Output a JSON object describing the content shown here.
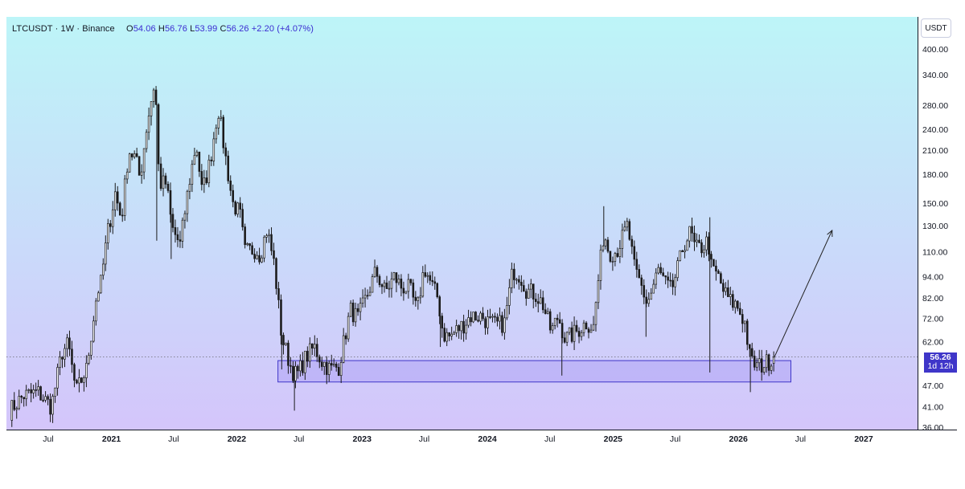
{
  "header": {
    "symbol": "LTCUSDT",
    "interval": "1W",
    "exchange": "Binance",
    "o_label": "O",
    "o_value": "54.06",
    "h_label": "H",
    "h_value": "56.76",
    "l_label": "L",
    "l_value": "53.99",
    "c_label": "C",
    "c_value": "56.26",
    "change": "+2.20 (+4.07%)"
  },
  "currency_button": "USDT",
  "price_tag": {
    "price": "56.26",
    "countdown": "1d 12h"
  },
  "colors": {
    "bg_top": "#bdf5f8",
    "bg_bottom": "#d5c3fb",
    "candle": "#1a1a1a",
    "zone_fill": "#a99cf4",
    "zone_stroke": "#3f36c9",
    "tag_bg": "#3f36c9",
    "ohlc_value": "#3a2bd1",
    "change_value": "#3a2bd1"
  },
  "chart_data": {
    "type": "candlestick",
    "y_scale": "log",
    "ylim": [
      35,
      440
    ],
    "y_ticks": [
      400,
      340,
      280,
      240,
      210,
      180,
      150,
      130,
      110,
      94,
      82,
      72,
      62,
      56.26,
      47,
      41,
      36
    ],
    "y_tick_labels": [
      "400.00",
      "340.00",
      "280.00",
      "240.00",
      "210.00",
      "180.00",
      "150.00",
      "130.00",
      "110.00",
      "94.00",
      "82.00",
      "72.00",
      "62.00",
      "",
      "47.00",
      "41.00",
      "36.00"
    ],
    "x_ticks": [
      {
        "label": "Jul",
        "date": "2020-07-01"
      },
      {
        "label": "2021",
        "date": "2021-01-01"
      },
      {
        "label": "Jul",
        "date": "2021-07-01"
      },
      {
        "label": "2022",
        "date": "2022-01-01"
      },
      {
        "label": "Jul",
        "date": "2022-07-01"
      },
      {
        "label": "2023",
        "date": "2023-01-01"
      },
      {
        "label": "Jul",
        "date": "2023-07-01"
      },
      {
        "label": "2024",
        "date": "2024-01-01"
      },
      {
        "label": "Jul",
        "date": "2024-07-01"
      },
      {
        "label": "2025",
        "date": "2025-01-01"
      },
      {
        "label": "Jul",
        "date": "2025-07-01"
      },
      {
        "label": "2026",
        "date": "2026-01-01"
      },
      {
        "label": "Jul",
        "date": "2026-07-01"
      },
      {
        "label": "2027",
        "date": "2027-01-01"
      }
    ],
    "bold_years": [
      "2021",
      "2022",
      "2023",
      "2024",
      "2025",
      "2026",
      "2027"
    ],
    "support_zone": {
      "x0": "2022-05-01",
      "x1": "2026-06-03",
      "y_low": 48,
      "y_high": 55
    },
    "projection_arrow": {
      "from": [
        "2026-04-15",
        56
      ],
      "to": [
        "2026-10-01",
        126
      ]
    },
    "last_price_line": 56.26,
    "anchors": [
      [
        "2020-03-10",
        40
      ],
      [
        "2020-04-20",
        44
      ],
      [
        "2020-06-01",
        45
      ],
      [
        "2020-07-10",
        41
      ],
      [
        "2020-08-10",
        58
      ],
      [
        "2020-08-28",
        61
      ],
      [
        "2020-09-20",
        45
      ],
      [
        "2020-10-20",
        52
      ],
      [
        "2020-11-20",
        85
      ],
      [
        "2020-12-01",
        90
      ],
      [
        "2020-12-20",
        123
      ],
      [
        "2021-01-12",
        160
      ],
      [
        "2021-01-30",
        135
      ],
      [
        "2021-02-20",
        210
      ],
      [
        "2021-03-12",
        200
      ],
      [
        "2021-03-25",
        175
      ],
      [
        "2021-04-15",
        250
      ],
      [
        "2021-05-08",
        330
      ],
      [
        "2021-05-20",
        170
      ],
      [
        "2021-06-10",
        170
      ],
      [
        "2021-06-26",
        128
      ],
      [
        "2021-07-20",
        115
      ],
      [
        "2021-08-15",
        170
      ],
      [
        "2021-09-05",
        220
      ],
      [
        "2021-09-22",
        160
      ],
      [
        "2021-10-15",
        195
      ],
      [
        "2021-11-08",
        275
      ],
      [
        "2021-11-28",
        205
      ],
      [
        "2021-12-20",
        150
      ],
      [
        "2022-01-10",
        140
      ],
      [
        "2022-01-25",
        110
      ],
      [
        "2022-02-25",
        112
      ],
      [
        "2022-03-10",
        108
      ],
      [
        "2022-03-30",
        127
      ],
      [
        "2022-04-20",
        102
      ],
      [
        "2022-05-12",
        64
      ],
      [
        "2022-06-10",
        52
      ],
      [
        "2022-06-25",
        50
      ],
      [
        "2022-07-20",
        56
      ],
      [
        "2022-08-15",
        60
      ],
      [
        "2022-09-05",
        55
      ],
      [
        "2022-09-30",
        52
      ],
      [
        "2022-10-25",
        53
      ],
      [
        "2022-11-12",
        64
      ],
      [
        "2022-11-28",
        76
      ],
      [
        "2022-12-20",
        72
      ],
      [
        "2023-01-15",
        83
      ],
      [
        "2023-02-10",
        97
      ],
      [
        "2023-03-10",
        85
      ],
      [
        "2023-04-05",
        94
      ],
      [
        "2023-04-25",
        88
      ],
      [
        "2023-05-20",
        87
      ],
      [
        "2023-06-10",
        75
      ],
      [
        "2023-07-01",
        100
      ],
      [
        "2023-07-20",
        90
      ],
      [
        "2023-08-10",
        82
      ],
      [
        "2023-08-25",
        65
      ],
      [
        "2023-09-15",
        64
      ],
      [
        "2023-10-05",
        67
      ],
      [
        "2023-10-28",
        70
      ],
      [
        "2023-11-12",
        73
      ],
      [
        "2023-12-15",
        73
      ],
      [
        "2024-01-05",
        70
      ],
      [
        "2024-01-25",
        69
      ],
      [
        "2024-02-20",
        70
      ],
      [
        "2024-03-15",
        98
      ],
      [
        "2024-04-05",
        95
      ],
      [
        "2024-04-25",
        86
      ],
      [
        "2024-05-20",
        84
      ],
      [
        "2024-06-10",
        79
      ],
      [
        "2024-07-05",
        66
      ],
      [
        "2024-07-25",
        73
      ],
      [
        "2024-08-15",
        63
      ],
      [
        "2024-09-15",
        66
      ],
      [
        "2024-10-15",
        70
      ],
      [
        "2024-11-05",
        68
      ],
      [
        "2024-11-18",
        90
      ],
      [
        "2024-12-05",
        125
      ],
      [
        "2024-12-20",
        110
      ],
      [
        "2025-01-10",
        110
      ],
      [
        "2025-01-28",
        120
      ],
      [
        "2025-02-12",
        130
      ],
      [
        "2025-03-05",
        98
      ],
      [
        "2025-03-25",
        88
      ],
      [
        "2025-04-10",
        79
      ],
      [
        "2025-04-25",
        86
      ],
      [
        "2025-05-12",
        98
      ],
      [
        "2025-06-01",
        90
      ],
      [
        "2025-06-20",
        86
      ],
      [
        "2025-07-10",
        100
      ],
      [
        "2025-07-25",
        115
      ],
      [
        "2025-08-15",
        125
      ],
      [
        "2025-08-28",
        112
      ],
      [
        "2025-09-15",
        113
      ],
      [
        "2025-10-05",
        118
      ],
      [
        "2025-10-15",
        98
      ],
      [
        "2025-11-01",
        95
      ],
      [
        "2025-11-20",
        85
      ],
      [
        "2025-12-10",
        80
      ],
      [
        "2025-12-28",
        78
      ],
      [
        "2026-01-20",
        70
      ],
      [
        "2026-02-05",
        55
      ],
      [
        "2026-02-25",
        53
      ],
      [
        "2026-03-20",
        54
      ],
      [
        "2026-04-15",
        56.26
      ]
    ],
    "spikes": [
      [
        "2021-05-13",
        "low",
        118
      ],
      [
        "2021-06-24",
        "low",
        105
      ],
      [
        "2022-06-18",
        "low",
        40
      ],
      [
        "2022-05-12",
        "low",
        52
      ],
      [
        "2023-08-17",
        "low",
        60
      ],
      [
        "2024-08-05",
        "low",
        50
      ],
      [
        "2024-12-05",
        "high",
        147
      ],
      [
        "2025-04-07",
        "low",
        64
      ],
      [
        "2025-10-10",
        "low",
        51
      ],
      [
        "2025-10-10",
        "high",
        137
      ],
      [
        "2026-02-05",
        "low",
        45
      ]
    ]
  }
}
